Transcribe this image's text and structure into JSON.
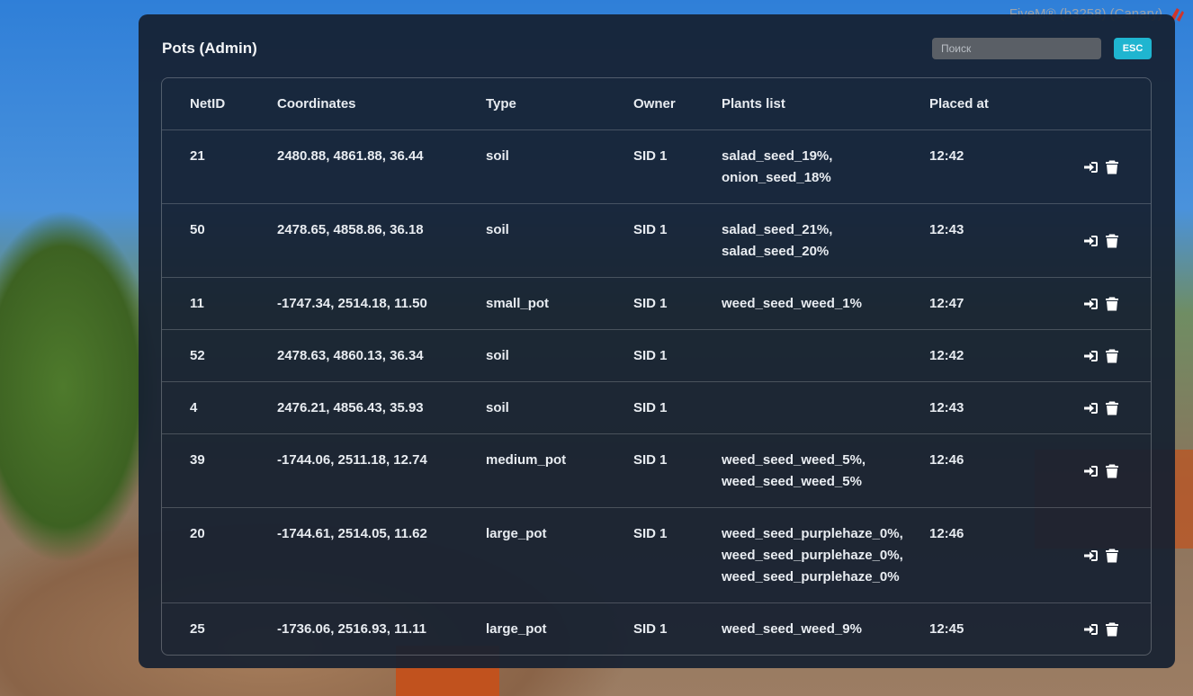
{
  "window_title": "FiveM® (b3258) (Canary)",
  "panel": {
    "title": "Pots (Admin)",
    "search_placeholder": "Поиск",
    "close_button": "ESC"
  },
  "table": {
    "columns": [
      "NetID",
      "Coordinates",
      "Type",
      "Owner",
      "Plants list",
      "Placed at"
    ],
    "rows": [
      {
        "netid": "21",
        "coordinates": "2480.88, 4861.88, 36.44",
        "type": "soil",
        "owner": "SID 1",
        "plants": [
          "salad_seed_19%,",
          "onion_seed_18%"
        ],
        "placed_at": "12:42"
      },
      {
        "netid": "50",
        "coordinates": "2478.65, 4858.86, 36.18",
        "type": "soil",
        "owner": "SID 1",
        "plants": [
          "salad_seed_21%,",
          "salad_seed_20%"
        ],
        "placed_at": "12:43"
      },
      {
        "netid": "11",
        "coordinates": "-1747.34, 2514.18, 11.50",
        "type": "small_pot",
        "owner": "SID 1",
        "plants": [
          "weed_seed_weed_1%"
        ],
        "placed_at": "12:47"
      },
      {
        "netid": "52",
        "coordinates": "2478.63, 4860.13, 36.34",
        "type": "soil",
        "owner": "SID 1",
        "plants": [],
        "placed_at": "12:42"
      },
      {
        "netid": "4",
        "coordinates": "2476.21, 4856.43, 35.93",
        "type": "soil",
        "owner": "SID 1",
        "plants": [],
        "placed_at": "12:43"
      },
      {
        "netid": "39",
        "coordinates": "-1744.06, 2511.18, 12.74",
        "type": "medium_pot",
        "owner": "SID 1",
        "plants": [
          "weed_seed_weed_5%,",
          "weed_seed_weed_5%"
        ],
        "placed_at": "12:46"
      },
      {
        "netid": "20",
        "coordinates": "-1744.61, 2514.05, 11.62",
        "type": "large_pot",
        "owner": "SID 1",
        "plants": [
          "weed_seed_purplehaze_0%,",
          "weed_seed_purplehaze_0%,",
          "weed_seed_purplehaze_0%"
        ],
        "placed_at": "12:46"
      },
      {
        "netid": "25",
        "coordinates": "-1736.06, 2516.93, 11.11",
        "type": "large_pot",
        "owner": "SID 1",
        "plants": [
          "weed_seed_weed_9%"
        ],
        "placed_at": "12:45"
      }
    ]
  }
}
